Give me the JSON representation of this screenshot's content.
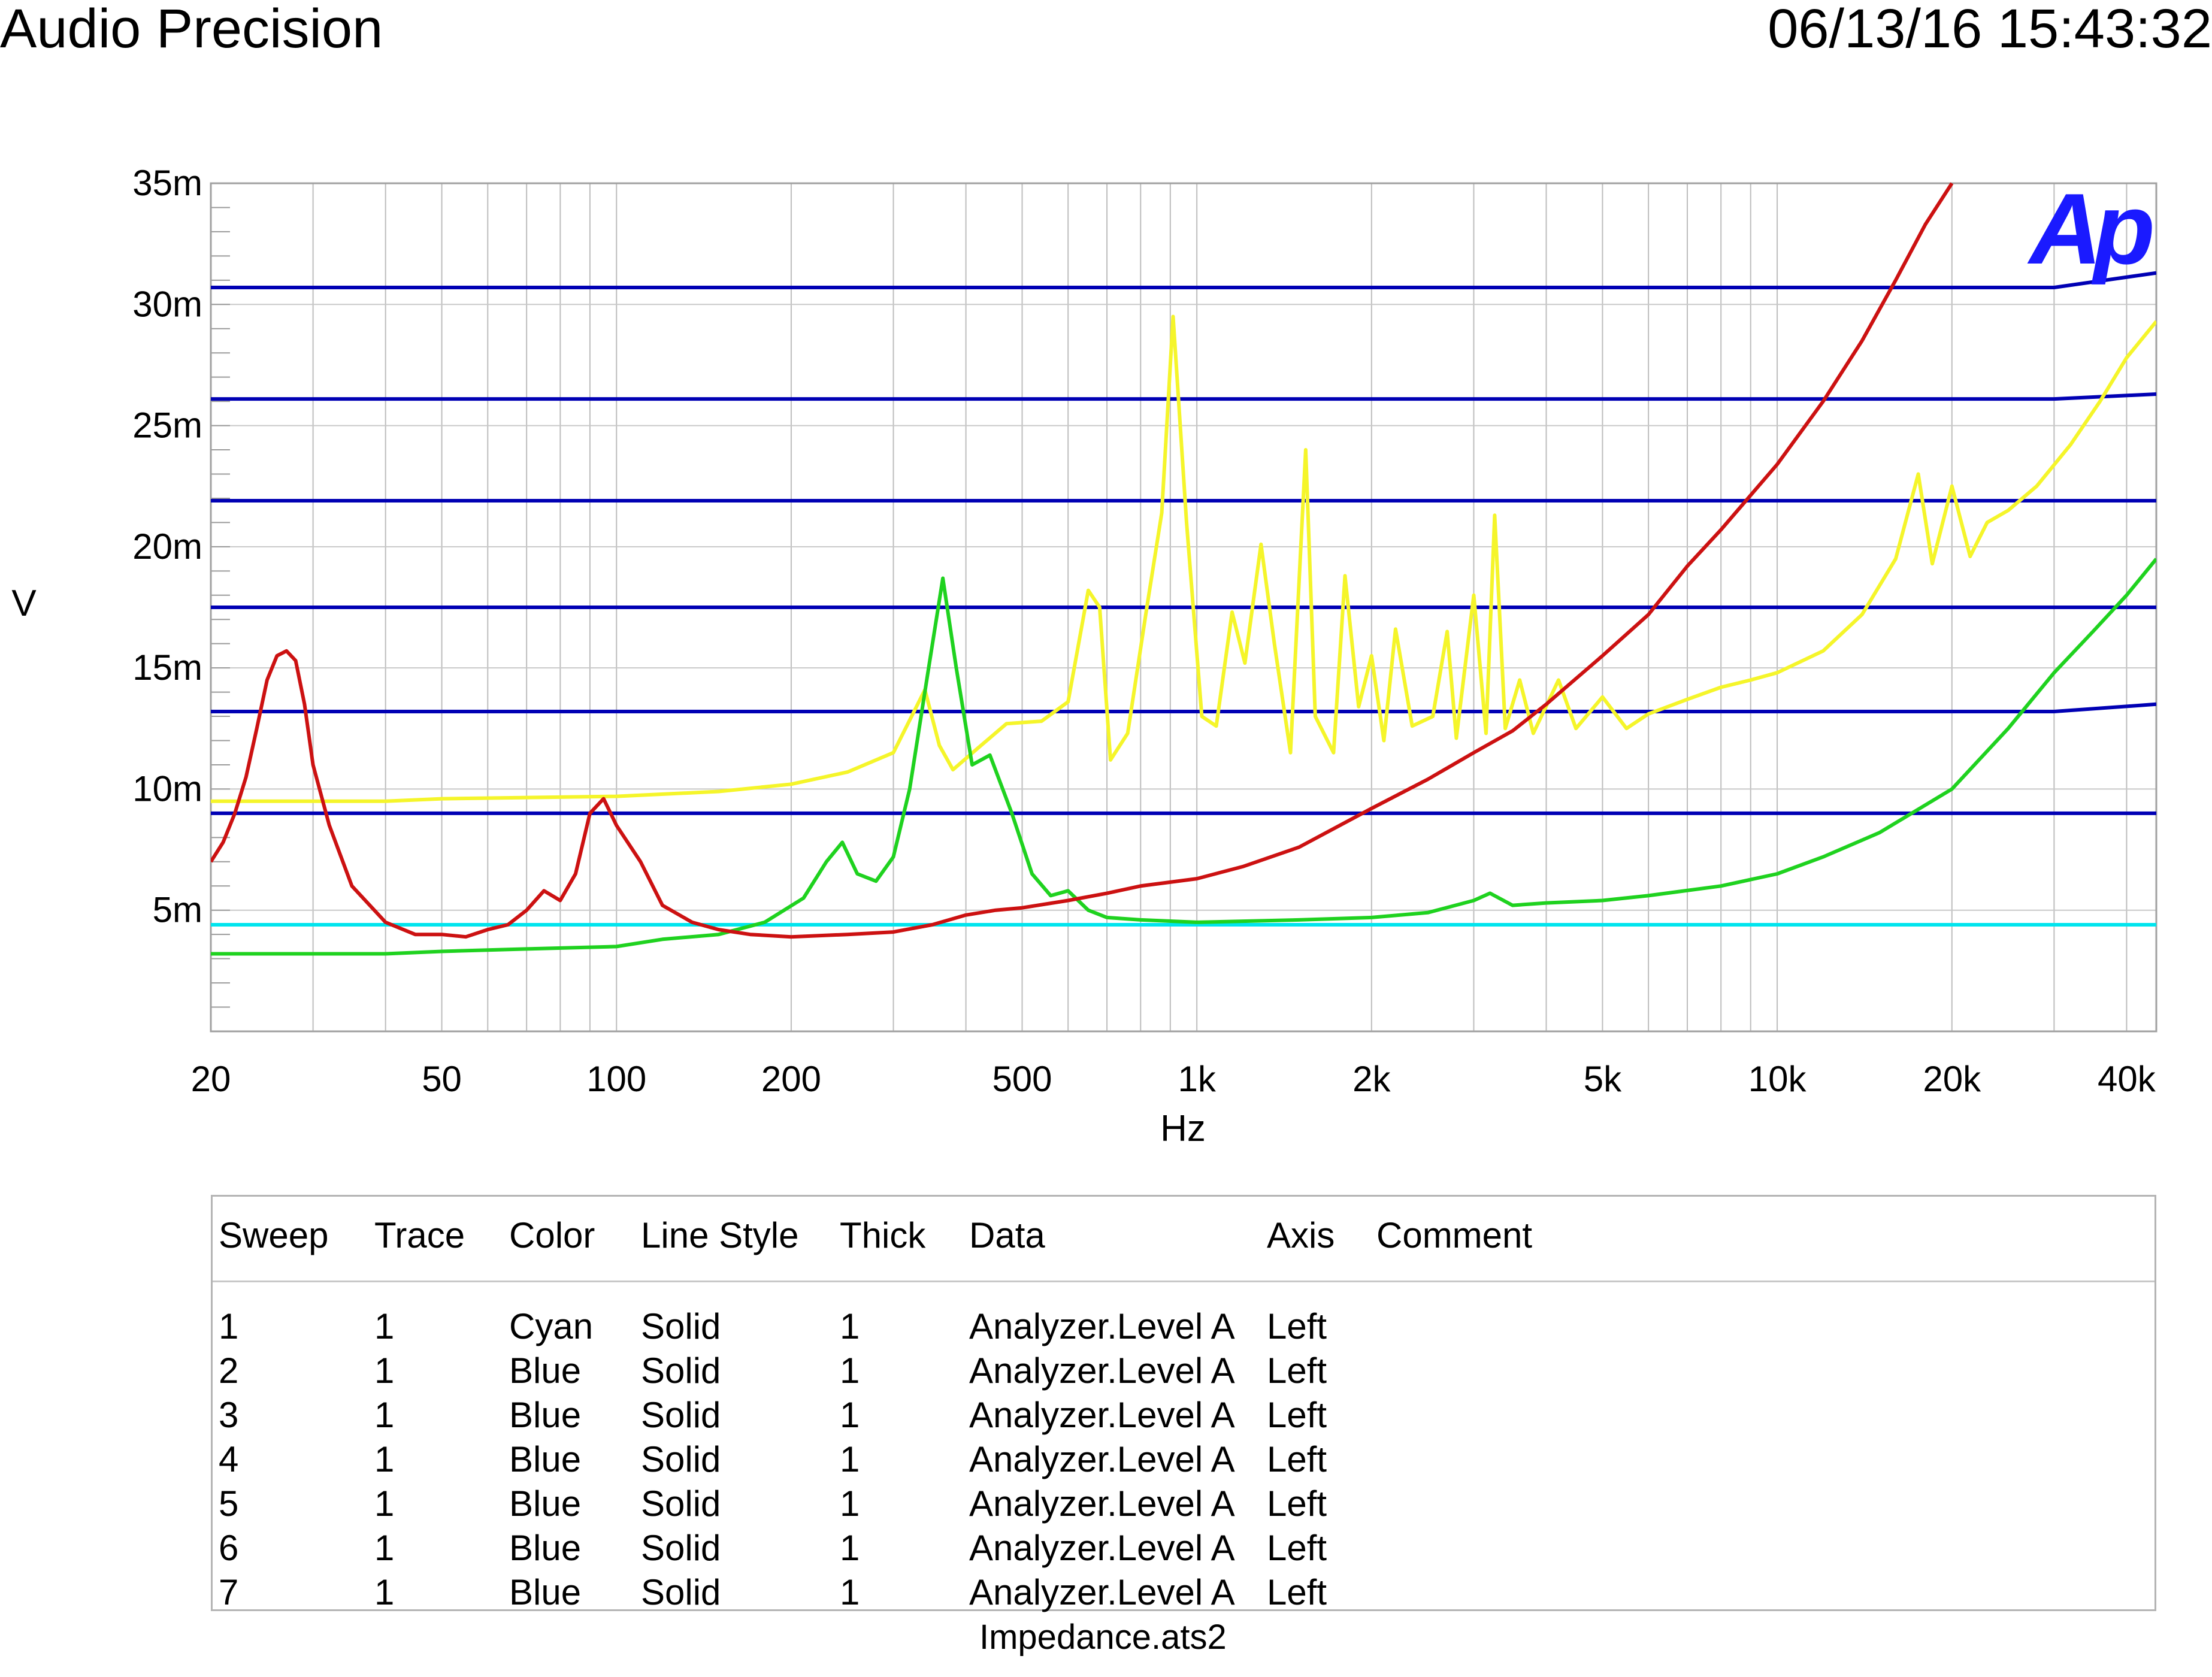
{
  "header": {
    "title": "Audio Precision",
    "timestamp": "06/13/16 15:43:32"
  },
  "logo": {
    "text": "Ap",
    "color": "#1a1aff"
  },
  "chart_data": {
    "type": "line",
    "title": "",
    "xlabel": "Hz",
    "ylabel": "V",
    "x_scale": "log",
    "xlim": [
      20,
      45000
    ],
    "ylim": [
      0,
      0.035
    ],
    "grid": true,
    "x_ticks": [
      {
        "value": 20,
        "label": "20"
      },
      {
        "value": 50,
        "label": "50"
      },
      {
        "value": 100,
        "label": "100"
      },
      {
        "value": 200,
        "label": "200"
      },
      {
        "value": 500,
        "label": "500"
      },
      {
        "value": 1000,
        "label": "1k"
      },
      {
        "value": 2000,
        "label": "2k"
      },
      {
        "value": 5000,
        "label": "5k"
      },
      {
        "value": 10000,
        "label": "10k"
      },
      {
        "value": 20000,
        "label": "20k"
      },
      {
        "value": 40000,
        "label": "40k"
      }
    ],
    "y_ticks": [
      {
        "value": 0.005,
        "label": "5m"
      },
      {
        "value": 0.01,
        "label": "10m"
      },
      {
        "value": 0.015,
        "label": "15m"
      },
      {
        "value": 0.02,
        "label": "20m"
      },
      {
        "value": 0.025,
        "label": "25m"
      },
      {
        "value": 0.03,
        "label": "30m"
      },
      {
        "value": 0.035,
        "label": "35m"
      }
    ],
    "series": [
      {
        "color": "#00e5ee",
        "kind": "flat",
        "y": 0.0044
      },
      {
        "color": "#0000b4",
        "kind": "flat",
        "y": 0.009
      },
      {
        "color": "#0000b4",
        "kind": "flat",
        "y": 0.0132,
        "rise_to": 0.0135
      },
      {
        "color": "#0000b4",
        "kind": "flat",
        "y": 0.0175
      },
      {
        "color": "#0000b4",
        "kind": "flat",
        "y": 0.0219
      },
      {
        "color": "#0000b4",
        "kind": "flat",
        "y": 0.0261,
        "rise_to": 0.0263
      },
      {
        "color": "#0000b4",
        "kind": "flat",
        "y": 0.0307,
        "rise_to": 0.0313
      },
      {
        "color": "#f5f52a",
        "kind": "curve",
        "points": [
          [
            20,
            0.0095
          ],
          [
            40,
            0.0095
          ],
          [
            50,
            0.0096
          ],
          [
            100,
            0.0097
          ],
          [
            150,
            0.0099
          ],
          [
            200,
            0.0102
          ],
          [
            250,
            0.0107
          ],
          [
            300,
            0.0115
          ],
          [
            340,
            0.0141
          ],
          [
            360,
            0.0118
          ],
          [
            380,
            0.0108
          ],
          [
            420,
            0.0117
          ],
          [
            470,
            0.0127
          ],
          [
            540,
            0.0128
          ],
          [
            600,
            0.0136
          ],
          [
            650,
            0.0182
          ],
          [
            680,
            0.0175
          ],
          [
            710,
            0.0112
          ],
          [
            760,
            0.0123
          ],
          [
            820,
            0.0175
          ],
          [
            870,
            0.0214
          ],
          [
            910,
            0.0295
          ],
          [
            960,
            0.021
          ],
          [
            1020,
            0.013
          ],
          [
            1080,
            0.0126
          ],
          [
            1150,
            0.0173
          ],
          [
            1210,
            0.0152
          ],
          [
            1290,
            0.0201
          ],
          [
            1360,
            0.016
          ],
          [
            1450,
            0.0115
          ],
          [
            1540,
            0.024
          ],
          [
            1600,
            0.013
          ],
          [
            1720,
            0.0115
          ],
          [
            1800,
            0.0188
          ],
          [
            1900,
            0.0134
          ],
          [
            2000,
            0.0155
          ],
          [
            2100,
            0.012
          ],
          [
            2200,
            0.0166
          ],
          [
            2350,
            0.0126
          ],
          [
            2550,
            0.013
          ],
          [
            2700,
            0.0165
          ],
          [
            2800,
            0.0121
          ],
          [
            3000,
            0.018
          ],
          [
            3150,
            0.0123
          ],
          [
            3260,
            0.0213
          ],
          [
            3400,
            0.0125
          ],
          [
            3600,
            0.0145
          ],
          [
            3800,
            0.0123
          ],
          [
            4200,
            0.0145
          ],
          [
            4500,
            0.0125
          ],
          [
            5000,
            0.0138
          ],
          [
            5500,
            0.0125
          ],
          [
            6000,
            0.0131
          ],
          [
            7000,
            0.0137
          ],
          [
            8000,
            0.0142
          ],
          [
            9000,
            0.0145
          ],
          [
            10000,
            0.0148
          ],
          [
            12000,
            0.0157
          ],
          [
            14000,
            0.0172
          ],
          [
            16000,
            0.0195
          ],
          [
            17500,
            0.023
          ],
          [
            18500,
            0.0193
          ],
          [
            20000,
            0.0225
          ],
          [
            21500,
            0.0196
          ],
          [
            23000,
            0.021
          ],
          [
            25000,
            0.0215
          ],
          [
            28000,
            0.0225
          ],
          [
            32000,
            0.0242
          ],
          [
            36000,
            0.026
          ],
          [
            40000,
            0.0278
          ],
          [
            45000,
            0.0293
          ]
        ]
      },
      {
        "color": "#1fd21f",
        "kind": "curve",
        "points": [
          [
            20,
            0.0032
          ],
          [
            40,
            0.0032
          ],
          [
            50,
            0.0033
          ],
          [
            70,
            0.0034
          ],
          [
            100,
            0.0035
          ],
          [
            120,
            0.0038
          ],
          [
            150,
            0.004
          ],
          [
            180,
            0.0045
          ],
          [
            210,
            0.0055
          ],
          [
            230,
            0.007
          ],
          [
            245,
            0.0078
          ],
          [
            260,
            0.0065
          ],
          [
            280,
            0.0062
          ],
          [
            300,
            0.0072
          ],
          [
            320,
            0.01
          ],
          [
            345,
            0.015
          ],
          [
            365,
            0.0187
          ],
          [
            385,
            0.015
          ],
          [
            410,
            0.011
          ],
          [
            440,
            0.0114
          ],
          [
            480,
            0.009
          ],
          [
            520,
            0.0065
          ],
          [
            560,
            0.0056
          ],
          [
            600,
            0.0058
          ],
          [
            650,
            0.005
          ],
          [
            700,
            0.0047
          ],
          [
            800,
            0.0046
          ],
          [
            1000,
            0.0045
          ],
          [
            1500,
            0.0046
          ],
          [
            2000,
            0.0047
          ],
          [
            2500,
            0.0049
          ],
          [
            3000,
            0.0054
          ],
          [
            3200,
            0.0057
          ],
          [
            3500,
            0.0052
          ],
          [
            4000,
            0.0053
          ],
          [
            5000,
            0.0054
          ],
          [
            6000,
            0.0056
          ],
          [
            8000,
            0.006
          ],
          [
            10000,
            0.0065
          ],
          [
            12000,
            0.0072
          ],
          [
            15000,
            0.0082
          ],
          [
            20000,
            0.01
          ],
          [
            25000,
            0.0125
          ],
          [
            30000,
            0.0148
          ],
          [
            35000,
            0.0165
          ],
          [
            40000,
            0.018
          ],
          [
            45000,
            0.0195
          ]
        ]
      },
      {
        "color": "#cc1111",
        "kind": "curve",
        "points": [
          [
            20,
            0.007
          ],
          [
            21,
            0.0078
          ],
          [
            22,
            0.009
          ],
          [
            23,
            0.0105
          ],
          [
            24,
            0.0125
          ],
          [
            25,
            0.0145
          ],
          [
            26,
            0.0155
          ],
          [
            27,
            0.0157
          ],
          [
            28,
            0.0153
          ],
          [
            29,
            0.0135
          ],
          [
            30,
            0.011
          ],
          [
            32,
            0.0085
          ],
          [
            35,
            0.006
          ],
          [
            40,
            0.0045
          ],
          [
            45,
            0.004
          ],
          [
            50,
            0.004
          ],
          [
            55,
            0.0039
          ],
          [
            60,
            0.0042
          ],
          [
            65,
            0.0044
          ],
          [
            70,
            0.005
          ],
          [
            75,
            0.0058
          ],
          [
            80,
            0.0054
          ],
          [
            85,
            0.0065
          ],
          [
            90,
            0.009
          ],
          [
            95,
            0.0096
          ],
          [
            100,
            0.0085
          ],
          [
            110,
            0.007
          ],
          [
            120,
            0.0052
          ],
          [
            135,
            0.0045
          ],
          [
            150,
            0.0042
          ],
          [
            170,
            0.004
          ],
          [
            200,
            0.0039
          ],
          [
            250,
            0.004
          ],
          [
            300,
            0.0041
          ],
          [
            350,
            0.0044
          ],
          [
            400,
            0.0048
          ],
          [
            450,
            0.005
          ],
          [
            500,
            0.0051
          ],
          [
            600,
            0.0054
          ],
          [
            700,
            0.0057
          ],
          [
            800,
            0.006
          ],
          [
            1000,
            0.0063
          ],
          [
            1200,
            0.0068
          ],
          [
            1500,
            0.0076
          ],
          [
            2000,
            0.0092
          ],
          [
            2500,
            0.0104
          ],
          [
            3000,
            0.0115
          ],
          [
            3500,
            0.0124
          ],
          [
            4000,
            0.0135
          ],
          [
            5000,
            0.0155
          ],
          [
            6000,
            0.0172
          ],
          [
            7000,
            0.0192
          ],
          [
            8000,
            0.0207
          ],
          [
            10000,
            0.0234
          ],
          [
            12000,
            0.026
          ],
          [
            14000,
            0.0285
          ],
          [
            16000,
            0.031
          ],
          [
            18000,
            0.0333
          ],
          [
            20000,
            0.035
          ]
        ]
      }
    ]
  },
  "legend": {
    "headers": {
      "sweep": "Sweep",
      "trace": "Trace",
      "color": "Color",
      "line_style": "Line Style",
      "thick": "Thick",
      "data": "Data",
      "axis": "Axis",
      "comment": "Comment"
    },
    "rows": [
      {
        "sweep": "1",
        "trace": "1",
        "color": "Cyan",
        "line_style": "Solid",
        "thick": "1",
        "data": "Analyzer.Level A",
        "axis": "Left"
      },
      {
        "sweep": "2",
        "trace": "1",
        "color": "Blue",
        "line_style": "Solid",
        "thick": "1",
        "data": "Analyzer.Level A",
        "axis": "Left"
      },
      {
        "sweep": "3",
        "trace": "1",
        "color": "Blue",
        "line_style": "Solid",
        "thick": "1",
        "data": "Analyzer.Level A",
        "axis": "Left"
      },
      {
        "sweep": "4",
        "trace": "1",
        "color": "Blue",
        "line_style": "Solid",
        "thick": "1",
        "data": "Analyzer.Level A",
        "axis": "Left"
      },
      {
        "sweep": "5",
        "trace": "1",
        "color": "Blue",
        "line_style": "Solid",
        "thick": "1",
        "data": "Analyzer.Level A",
        "axis": "Left"
      },
      {
        "sweep": "6",
        "trace": "1",
        "color": "Blue",
        "line_style": "Solid",
        "thick": "1",
        "data": "Analyzer.Level A",
        "axis": "Left"
      },
      {
        "sweep": "7",
        "trace": "1",
        "color": "Blue",
        "line_style": "Solid",
        "thick": "1",
        "data": "Analyzer.Level A",
        "axis": "Left"
      }
    ]
  },
  "footer": {
    "filename": "Impedance.ats2"
  }
}
